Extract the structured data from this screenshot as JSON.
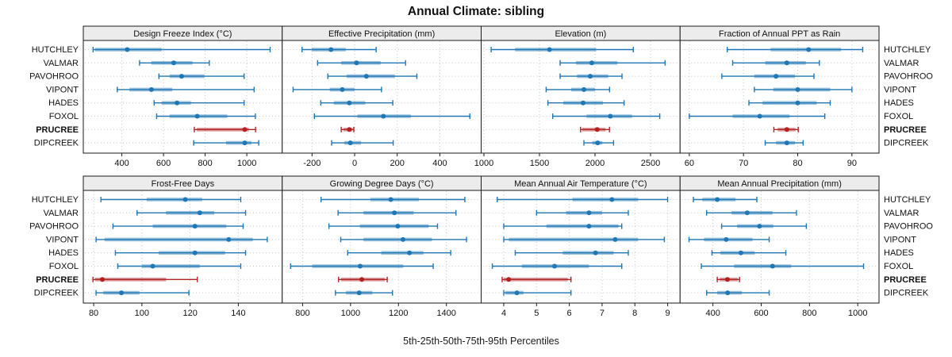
{
  "title": "Annual Climate: sibling",
  "caption": "5th-25th-50th-75th-95th Percentiles",
  "sites": [
    "HUTCHLEY",
    "VALMAR",
    "PAVOHROO",
    "VIPONT",
    "HADES",
    "FOXOL",
    "PRUCREE",
    "DIPCREEK"
  ],
  "highlight_site": "PRUCREE",
  "colors": {
    "series": "#1f77b4",
    "highlight": "#b22222",
    "grid": "#c8c8c8",
    "strip_bg": "#ececec",
    "border": "#1a1a1a",
    "text": "#111111"
  },
  "percentile_labels": [
    "p5",
    "p25",
    "p50",
    "p75",
    "p95"
  ],
  "chart_data": [
    {
      "type": "errorbar",
      "title": "Design Freeze Index (°C)",
      "xlim": [
        215,
        1170
      ],
      "ticks": [
        400,
        600,
        800,
        1000
      ],
      "series": [
        {
          "name": "HUTCHLEY",
          "percentiles": [
            262,
            271,
            426,
            591,
            1112
          ]
        },
        {
          "name": "VALMAR",
          "percentiles": [
            485,
            542,
            649,
            739,
            820
          ]
        },
        {
          "name": "PAVOHROO",
          "percentiles": [
            578,
            629,
            687,
            797,
            987
          ]
        },
        {
          "name": "VIPONT",
          "percentiles": [
            378,
            436,
            542,
            642,
            1035
          ]
        },
        {
          "name": "HADES",
          "percentiles": [
            555,
            591,
            665,
            732,
            987
          ]
        },
        {
          "name": "FOXOL",
          "percentiles": [
            567,
            629,
            762,
            906,
            1041
          ]
        },
        {
          "name": "PRUCREE",
          "percentiles": [
            748,
            760,
            990,
            1010,
            1042
          ]
        },
        {
          "name": "DIPCREEK",
          "percentiles": [
            745,
            900,
            990,
            1022,
            1057
          ]
        }
      ]
    },
    {
      "type": "errorbar",
      "title": "Effective Precipitation (mm)",
      "xlim": [
        -340,
        594
      ],
      "ticks": [
        -200,
        0,
        200,
        400
      ],
      "series": [
        {
          "name": "HUTCHLEY",
          "percentiles": [
            -247,
            -201,
            -111,
            -42,
            101
          ]
        },
        {
          "name": "VALMAR",
          "percentiles": [
            -174,
            -63,
            9,
            122,
            239
          ]
        },
        {
          "name": "PAVOHROO",
          "percentiles": [
            -126,
            -38,
            55,
            189,
            292
          ]
        },
        {
          "name": "VIPONT",
          "percentiles": [
            -289,
            -117,
            -58,
            0,
            126
          ]
        },
        {
          "name": "HADES",
          "percentiles": [
            -159,
            -98,
            -25,
            50,
            179
          ]
        },
        {
          "name": "FOXOL",
          "percentiles": [
            -189,
            13,
            135,
            264,
            541
          ]
        },
        {
          "name": "PRUCREE",
          "percentiles": [
            -63,
            -52,
            -25,
            -10,
            -4
          ]
        },
        {
          "name": "DIPCREEK",
          "percentiles": [
            -108,
            -48,
            -20,
            30,
            181
          ]
        }
      ]
    },
    {
      "type": "errorbar",
      "title": "Elevation (m)",
      "xlim": [
        975,
        2766
      ],
      "ticks": [
        1000,
        1500,
        2000,
        2500
      ],
      "series": [
        {
          "name": "HUTCHLEY",
          "percentiles": [
            1065,
            1280,
            1590,
            2010,
            2345
          ]
        },
        {
          "name": "VALMAR",
          "percentiles": [
            1686,
            1829,
            1971,
            2202,
            2631
          ]
        },
        {
          "name": "PAVOHROO",
          "percentiles": [
            1686,
            1838,
            1957,
            2119,
            2243
          ]
        },
        {
          "name": "VIPONT",
          "percentiles": [
            1560,
            1786,
            1900,
            2000,
            2131
          ]
        },
        {
          "name": "HADES",
          "percentiles": [
            1576,
            1714,
            1893,
            2071,
            2262
          ]
        },
        {
          "name": "FOXOL",
          "percentiles": [
            1619,
            1924,
            2138,
            2333,
            2583
          ]
        },
        {
          "name": "PRUCREE",
          "percentiles": [
            1870,
            1885,
            2020,
            2095,
            2130
          ]
        },
        {
          "name": "DIPCREEK",
          "percentiles": [
            1900,
            1976,
            2024,
            2067,
            2167
          ]
        }
      ]
    },
    {
      "type": "errorbar",
      "title": "Fraction of Annual PPT as Rain",
      "xlim": [
        58.3,
        95
      ],
      "ticks": [
        60,
        70,
        80,
        90
      ],
      "series": [
        {
          "name": "HUTCHLEY",
          "percentiles": [
            67,
            75,
            82,
            88,
            92
          ]
        },
        {
          "name": "VALMAR",
          "percentiles": [
            68,
            74,
            78,
            81.5,
            84
          ]
        },
        {
          "name": "PAVOHROO",
          "percentiles": [
            66,
            72,
            76,
            79.5,
            83
          ]
        },
        {
          "name": "VIPONT",
          "percentiles": [
            72,
            75.5,
            80,
            86,
            90
          ]
        },
        {
          "name": "HADES",
          "percentiles": [
            71,
            73.5,
            80,
            83.5,
            86
          ]
        },
        {
          "name": "FOXOL",
          "percentiles": [
            60,
            68,
            73,
            78.5,
            85
          ]
        },
        {
          "name": "PRUCREE",
          "percentiles": [
            75.6,
            76.3,
            78,
            79.6,
            80.1
          ]
        },
        {
          "name": "DIPCREEK",
          "percentiles": [
            74,
            76,
            78,
            79.5,
            81
          ]
        }
      ]
    },
    {
      "type": "errorbar",
      "title": "Frost-Free Days",
      "xlim": [
        75.7,
        158.2
      ],
      "ticks": [
        80,
        100,
        120,
        140
      ],
      "series": [
        {
          "name": "HUTCHLEY",
          "percentiles": [
            83,
            102,
            118,
            125,
            141
          ]
        },
        {
          "name": "VALMAR",
          "percentiles": [
            98,
            110,
            124,
            130,
            143
          ]
        },
        {
          "name": "PAVOHROO",
          "percentiles": [
            88,
            104.5,
            122,
            135,
            142
          ]
        },
        {
          "name": "VIPONT",
          "percentiles": [
            81,
            84.5,
            136,
            146,
            152
          ]
        },
        {
          "name": "HADES",
          "percentiles": [
            89,
            107,
            122,
            134.5,
            143
          ]
        },
        {
          "name": "FOXOL",
          "percentiles": [
            90,
            100,
            104.5,
            124,
            141
          ]
        },
        {
          "name": "PRUCREE",
          "percentiles": [
            79.7,
            80.5,
            83.6,
            110,
            123
          ]
        },
        {
          "name": "DIPCREEK",
          "percentiles": [
            81,
            84,
            91.5,
            99,
            119.5
          ]
        }
      ]
    },
    {
      "type": "errorbar",
      "title": "Growing Degree Days (°C)",
      "xlim": [
        715,
        1545
      ],
      "ticks": [
        800,
        1000,
        1200,
        1400
      ],
      "series": [
        {
          "name": "HUTCHLEY",
          "percentiles": [
            877,
            1083,
            1168,
            1285,
            1477
          ]
        },
        {
          "name": "VALMAR",
          "percentiles": [
            948,
            1054,
            1183,
            1263,
            1440
          ]
        },
        {
          "name": "PAVOHROO",
          "percentiles": [
            910,
            1039,
            1197,
            1326,
            1363
          ]
        },
        {
          "name": "VIPONT",
          "percentiles": [
            959,
            1054,
            1219,
            1340,
            1484
          ]
        },
        {
          "name": "HADES",
          "percentiles": [
            988,
            1128,
            1246,
            1304,
            1418
          ]
        },
        {
          "name": "FOXOL",
          "percentiles": [
            750,
            840,
            1040,
            1220,
            1345
          ]
        },
        {
          "name": "PRUCREE",
          "percentiles": [
            950,
            960,
            1047,
            1143,
            1153
          ]
        },
        {
          "name": "DIPCREEK",
          "percentiles": [
            937,
            981,
            1036,
            1091,
            1175
          ]
        }
      ]
    },
    {
      "type": "errorbar",
      "title": "Mean Annual Air Temperature (°C)",
      "xlim": [
        3.31,
        9.38
      ],
      "ticks": [
        4,
        5,
        6,
        7,
        8,
        9
      ],
      "series": [
        {
          "name": "HUTCHLEY",
          "percentiles": [
            3.8,
            6.1,
            7.3,
            8.1,
            9.0
          ]
        },
        {
          "name": "VALMAR",
          "percentiles": [
            5.0,
            5.9,
            6.6,
            7.0,
            7.8
          ]
        },
        {
          "name": "PAVOHROO",
          "percentiles": [
            4.0,
            5.3,
            6.6,
            7.5,
            7.6
          ]
        },
        {
          "name": "VIPONT",
          "percentiles": [
            4.0,
            4.15,
            7.4,
            8.1,
            8.9
          ]
        },
        {
          "name": "HADES",
          "percentiles": [
            4.35,
            5.8,
            6.8,
            7.35,
            7.8
          ]
        },
        {
          "name": "FOXOL",
          "percentiles": [
            3.65,
            4.55,
            5.55,
            6.6,
            7.6
          ]
        },
        {
          "name": "PRUCREE",
          "percentiles": [
            3.95,
            4.0,
            4.15,
            5.95,
            6.05
          ]
        },
        {
          "name": "DIPCREEK",
          "percentiles": [
            4.0,
            4.05,
            4.4,
            4.6,
            6.05
          ]
        }
      ]
    },
    {
      "type": "errorbar",
      "title": "Mean Annual Precipitation (mm)",
      "xlim": [
        264,
        1088
      ],
      "ticks": [
        400,
        600,
        800,
        1000
      ],
      "series": [
        {
          "name": "HUTCHLEY",
          "percentiles": [
            319,
            356,
            418,
            494,
            582
          ]
        },
        {
          "name": "VALMAR",
          "percentiles": [
            374,
            477,
            542,
            647,
            746
          ]
        },
        {
          "name": "PAVOHROO",
          "percentiles": [
            436,
            500,
            593,
            650,
            787
          ]
        },
        {
          "name": "VIPONT",
          "percentiles": [
            301,
            363,
            455,
            564,
            633
          ]
        },
        {
          "name": "HADES",
          "percentiles": [
            396,
            431,
            516,
            573,
            702
          ]
        },
        {
          "name": "FOXOL",
          "percentiles": [
            352,
            488,
            647,
            724,
            1024
          ]
        },
        {
          "name": "PRUCREE",
          "percentiles": [
            418,
            428,
            460,
            503,
            510
          ]
        },
        {
          "name": "DIPCREEK",
          "percentiles": [
            374,
            418,
            461,
            520,
            633
          ]
        }
      ]
    }
  ]
}
